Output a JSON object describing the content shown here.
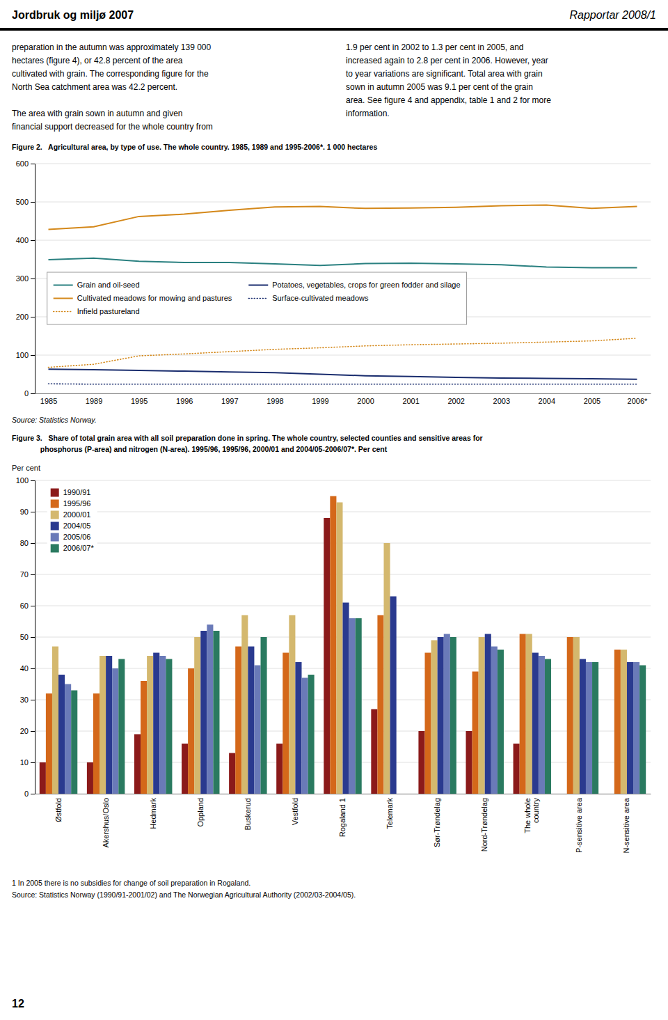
{
  "header_left": "Jordbruk og miljø 2007",
  "header_right": "Rapportar 2008/1",
  "body_text_left": "preparation in the autumn was approximately 139 000\nhectares (figure 4), or 42.8 percent of the area\ncultivated with grain. The corresponding figure for the\nNorth Sea catchment area was 42.2 percent.\n\nThe area with grain sown in autumn and given\nfinancial support decreased for the whole country from",
  "body_text_right": "1.9 per cent in 2002 to 1.3 per cent in 2005, and\nincreased again to 2.8 per cent in 2006. However, year\nto year variations are significant. Total area with grain\nsown in autumn 2005 was 9.1 per cent of the grain\narea. See figure 4 and appendix, table 1 and 2 for more\ninformation.",
  "page_number": "12",
  "chart_data": [
    {
      "type": "line",
      "title": "Figure 2.   Agricultural area, by type of use. The whole country. 1985, 1989 and 1995-2006*. 1 000 hectares",
      "categories": [
        "1985",
        "1989",
        "1995",
        "1996",
        "1997",
        "1998",
        "1999",
        "2000",
        "2001",
        "2002",
        "2003",
        "2004",
        "2005",
        "2006*"
      ],
      "series": [
        {
          "name": "Grain and oil-seed",
          "color": "#2a8080",
          "line_style": "solid",
          "values": [
            349,
            353,
            345,
            342,
            342,
            338,
            334,
            339,
            340,
            338,
            336,
            330,
            328,
            328
          ]
        },
        {
          "name": "Potatoes, vegetables, crops for green fodder and silage",
          "color": "#1a2d6e",
          "line_style": "solid",
          "values": [
            63,
            62,
            60,
            58,
            56,
            54,
            50,
            46,
            44,
            42,
            40,
            39,
            38,
            37
          ]
        },
        {
          "name": "Cultivated meadows for mowing and pastures",
          "color": "#d4881a",
          "line_style": "solid",
          "values": [
            428,
            435,
            462,
            468,
            478,
            487,
            488,
            483,
            484,
            486,
            490,
            492,
            483,
            488
          ]
        },
        {
          "name": "Surface-cultivated meadows",
          "color": "#1a2d6e",
          "line_style": "dotted",
          "values": [
            25,
            24,
            24,
            24,
            24,
            24,
            24,
            24,
            24,
            24,
            24,
            24,
            24,
            24
          ]
        },
        {
          "name": "Infield pastureland",
          "color": "#d4881a",
          "line_style": "dotted",
          "values": [
            68,
            76,
            98,
            103,
            109,
            115,
            119,
            124,
            127,
            129,
            131,
            134,
            137,
            144
          ]
        }
      ],
      "ylim": [
        0,
        600
      ],
      "yticks": [
        0,
        100,
        200,
        300,
        400,
        500,
        600
      ],
      "grid": true,
      "legend": "lower left",
      "annotations": [
        "Source: Statistics Norway."
      ]
    },
    {
      "type": "bar",
      "title": "Figure 3.   Share of total grain area with all soil preparation done in spring. The whole country, selected counties and sensitive areas for\n              phosphorus (P-area) and nitrogen (N-area). 1995/96, 1995/96, 2000/01 and 2004/05-2006/07*. Per cent",
      "ylabel": "Per cent",
      "categories": [
        "Østfold",
        "Akershus/Oslo",
        "Hedmark",
        "Oppland",
        "Buskerud",
        "Vestfold",
        "Rogaland 1",
        "Telemark",
        "Sør-Trøndelag",
        "Nord-Trøndelag",
        "The whole\ncountry",
        "P-sensitive area",
        "N-sensitive area"
      ],
      "series": [
        {
          "name": "1990/91",
          "color": "#8b1a1a",
          "values": [
            10,
            10,
            19,
            16,
            13,
            16,
            88,
            27,
            20,
            20,
            16,
            0,
            0
          ]
        },
        {
          "name": "1995/96",
          "color": "#d4681a",
          "values": [
            32,
            32,
            36,
            40,
            47,
            45,
            95,
            57,
            45,
            39,
            51,
            50,
            46
          ]
        },
        {
          "name": "2000/01",
          "color": "#d4b86e",
          "values": [
            47,
            44,
            44,
            50,
            57,
            57,
            93,
            80,
            49,
            50,
            51,
            50,
            46
          ]
        },
        {
          "name": "2004/05",
          "color": "#2a3a8f",
          "values": [
            38,
            44,
            45,
            52,
            47,
            42,
            61,
            63,
            50,
            51,
            45,
            43,
            42
          ]
        },
        {
          "name": "2005/06",
          "color": "#6a7ab8",
          "values": [
            35,
            40,
            44,
            54,
            41,
            37,
            56,
            0,
            51,
            47,
            44,
            42,
            42
          ]
        },
        {
          "name": "2006/07*",
          "color": "#2a7a60",
          "values": [
            33,
            43,
            43,
            52,
            50,
            38,
            56,
            0,
            50,
            46,
            43,
            42,
            41
          ]
        }
      ],
      "ylim": [
        0,
        100
      ],
      "yticks": [
        0,
        10,
        20,
        30,
        40,
        50,
        60,
        70,
        80,
        90,
        100
      ],
      "grid": true,
      "legend": "upper left",
      "annotations": [
        "1 In 2005 there is no subsidies for change of soil preparation in Rogaland.",
        "Source: Statistics Norway (1990/91-2001/02) and The Norwegian Agricultural Authority (2002/03-2004/05)."
      ]
    }
  ]
}
